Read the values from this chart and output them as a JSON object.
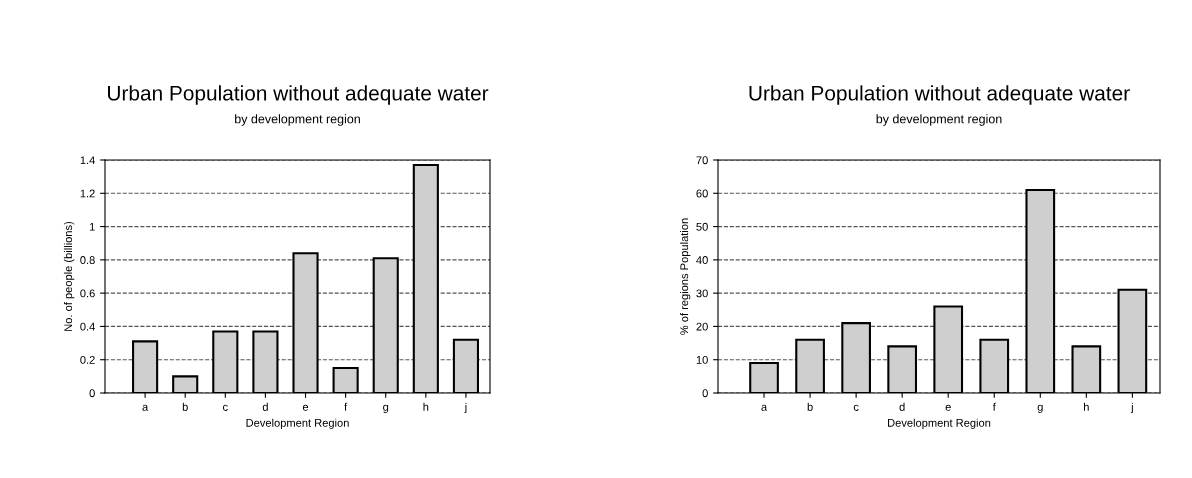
{
  "chart_data": [
    {
      "type": "bar",
      "title": "Urban Population without adequate water",
      "subtitle": "by development region",
      "xlabel": "Development Region",
      "ylabel": "No. of people (billions)",
      "categories": [
        "a",
        "b",
        "c",
        "d",
        "e",
        "f",
        "g",
        "h",
        "j"
      ],
      "values": [
        0.31,
        0.1,
        0.37,
        0.37,
        0.84,
        0.15,
        0.81,
        1.37,
        0.32
      ],
      "color": "#cfcfcf",
      "ylim": [
        0,
        1.4
      ],
      "yticks": [
        0,
        0.2,
        0.4,
        0.6,
        0.8,
        1,
        1.2,
        1.4
      ],
      "grid": "y"
    },
    {
      "type": "bar",
      "title": "Urban Population without adequate water",
      "subtitle": "by development region",
      "xlabel": "Development Region",
      "ylabel": "% of regions Population",
      "categories": [
        "a",
        "b",
        "c",
        "d",
        "e",
        "f",
        "g",
        "h",
        "j"
      ],
      "values": [
        9,
        16,
        21,
        14,
        26,
        16,
        61,
        14,
        31
      ],
      "color": "#cfcfcf",
      "ylim": [
        0,
        70
      ],
      "yticks": [
        0,
        10,
        20,
        30,
        40,
        50,
        60,
        70
      ],
      "grid": "y"
    }
  ]
}
